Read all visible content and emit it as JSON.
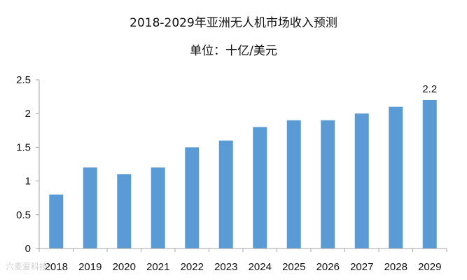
{
  "chart_data": {
    "type": "bar",
    "title": "2018-2029年亚洲无人机市场收入预测",
    "subtitle": "单位：十亿/美元",
    "categories": [
      "2018",
      "2019",
      "2020",
      "2021",
      "2022",
      "2023",
      "2024",
      "2025",
      "2026",
      "2027",
      "2028",
      "2029"
    ],
    "values": [
      0.8,
      1.2,
      1.1,
      1.2,
      1.5,
      1.6,
      1.8,
      1.9,
      1.9,
      2.0,
      2.1,
      2.2
    ],
    "yticks": [
      "0",
      "0.5",
      "1",
      "1.5",
      "2",
      "2.5"
    ],
    "ylim": [
      0,
      2.5
    ],
    "data_labels": [
      {
        "index": 11,
        "text": "2.2"
      }
    ],
    "bar_color": "#5b9bd5",
    "grid": false,
    "xlabel": "",
    "ylabel": ""
  },
  "watermark": "六麦爱科技"
}
